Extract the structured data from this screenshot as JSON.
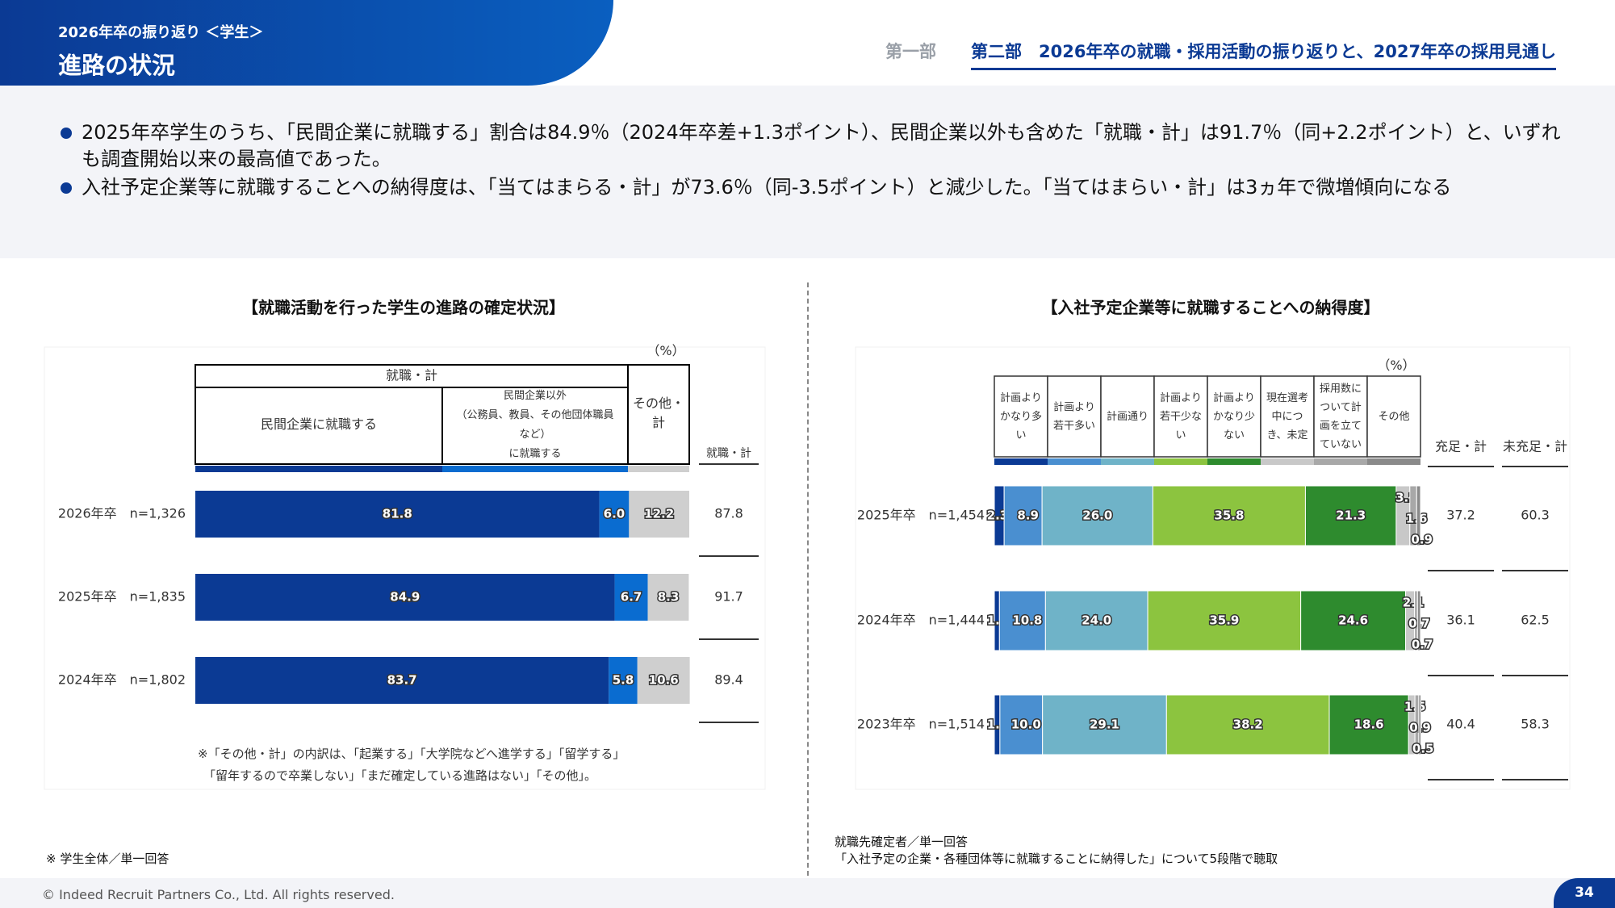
{
  "header": {
    "subtitle": "2026年卒の振り返り ＜学生＞",
    "title": "進路の状況",
    "nav_part1": "第一部",
    "nav_part2": "第二部　2026年卒の就職・採用活動の振り返りと、2027年卒の採用見通し"
  },
  "summary": {
    "bullet1": "2025年卒学生のうち、「民間企業に就職する」割合は84.9％（2024年卒差+1.3ポイント）、民間企業以外も含めた「就職・計」は91.7％（同+2.2ポイント）と、いずれも調査開始以来の最高値であった。",
    "bullet2": "入社予定企業等に就職することへの納得度は、「当てはまらる・計」が73.6％（同-3.5ポイント）と減少した。「当てはまらい・計」は3ヵ年で微増傾向になる"
  },
  "colors": {
    "brand": "#0b3a94",
    "brand_light": "#0a5fc0",
    "background_band": "#f3f4f8"
  },
  "chart_data": [
    {
      "type": "bar",
      "orientation": "horizontal-stacked",
      "title": "【就職活動を行った学生の進路の確定状況】",
      "unit": "（%）",
      "group_header": "就職・計",
      "legend_headers": [
        "民間企業に就職する",
        "民間企業以外\n（公務員、教員、その他団体職員\nなど）\nに就職する",
        "その他・\n計"
      ],
      "categories": [
        "2026年卒　n=1,326",
        "2025年卒　n=1,835",
        "2024年卒　n=1,802"
      ],
      "series": [
        {
          "name": "民間企業に就職する",
          "color": "#0b3a94",
          "values": [
            81.8,
            84.9,
            83.7
          ]
        },
        {
          "name": "民間企業以外に就職する",
          "color": "#0a6cd0",
          "values": [
            6.0,
            6.7,
            5.8
          ]
        },
        {
          "name": "その他・計",
          "color": "#cfcfcf",
          "values": [
            12.2,
            8.3,
            10.6
          ]
        }
      ],
      "summary_column": {
        "name": "就職・計",
        "values": [
          87.8,
          91.7,
          89.4
        ]
      },
      "note_lines": [
        "※「その他・計」の内訳は、「起業する」「大学院などへ進学する」「留学する」",
        "「留年するので卒業しない」「まだ確定している進路はない」「その他」。"
      ],
      "footnote": "※ 学生全体／単一回答"
    },
    {
      "type": "bar",
      "orientation": "horizontal-stacked",
      "title": "【入社予定企業等に就職することへの納得度】",
      "unit": "（%）",
      "legend_headers": [
        "計画より\nかなり多\nい",
        "計画より\n若干多い",
        "計画通り",
        "計画より\n若干少な\nい",
        "計画より\nかなり少\nない",
        "現在選考\n中につ\nき、未定",
        "採用数に\nついて計\n画を立て\nていない",
        "その他"
      ],
      "categories": [
        "2025年卒　n=1,454",
        "2024年卒　n=1,444",
        "2023年卒　n=1,514"
      ],
      "series": [
        {
          "name": "計画よりかなり多い",
          "color": "#0b3a94",
          "values": [
            2.3,
            1.2,
            1.3
          ]
        },
        {
          "name": "計画より若干多い",
          "color": "#4a8fd0",
          "values": [
            8.9,
            10.8,
            10.0
          ]
        },
        {
          "name": "計画通り",
          "color": "#6fb3c8",
          "values": [
            26.0,
            24.0,
            29.1
          ]
        },
        {
          "name": "計画より若干少ない",
          "color": "#8cc43f",
          "values": [
            35.8,
            35.9,
            38.2
          ]
        },
        {
          "name": "計画よりかなり少ない",
          "color": "#2e8b2e",
          "values": [
            21.3,
            24.6,
            18.6
          ]
        },
        {
          "name": "現在選考中につき、未定",
          "color": "#c8c8c8",
          "values": [
            3.2,
            2.1,
            1.5
          ]
        },
        {
          "name": "採用数について計画を立てていない",
          "color": "#a8a8a8",
          "values": [
            1.6,
            0.7,
            0.9
          ]
        },
        {
          "name": "その他",
          "color": "#8a8a8a",
          "values": [
            0.9,
            0.7,
            0.5
          ]
        }
      ],
      "summary_columns": [
        {
          "name": "充足・計",
          "values": [
            37.2,
            36.1,
            40.4
          ]
        },
        {
          "name": "未充足・計",
          "values": [
            60.3,
            62.5,
            58.3
          ]
        }
      ],
      "footnote_lines": [
        "就職先確定者／単一回答",
        "「入社予定の企業・各種団体等に就職することに納得した」について5段階で聴取"
      ]
    }
  ],
  "footer": {
    "copyright": "© Indeed Recruit Partners Co., Ltd. All rights reserved.",
    "page": "34"
  }
}
